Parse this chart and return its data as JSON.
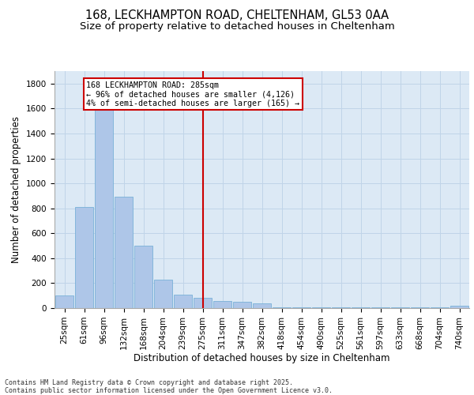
{
  "title1": "168, LECKHAMPTON ROAD, CHELTENHAM, GL53 0AA",
  "title2": "Size of property relative to detached houses in Cheltenham",
  "xlabel": "Distribution of detached houses by size in Cheltenham",
  "ylabel": "Number of detached properties",
  "categories": [
    "25sqm",
    "61sqm",
    "96sqm",
    "132sqm",
    "168sqm",
    "204sqm",
    "239sqm",
    "275sqm",
    "311sqm",
    "347sqm",
    "382sqm",
    "418sqm",
    "454sqm",
    "490sqm",
    "525sqm",
    "561sqm",
    "597sqm",
    "633sqm",
    "668sqm",
    "704sqm",
    "740sqm"
  ],
  "values": [
    100,
    810,
    1640,
    890,
    500,
    230,
    105,
    80,
    55,
    50,
    35,
    5,
    5,
    5,
    5,
    5,
    5,
    5,
    5,
    5,
    20
  ],
  "bar_color": "#aec6e8",
  "bar_edge_color": "#6aaad4",
  "vline_x": 7,
  "vline_color": "#cc0000",
  "annotation_text": "168 LECKHAMPTON ROAD: 285sqm\n← 96% of detached houses are smaller (4,126)\n4% of semi-detached houses are larger (165) →",
  "annotation_box_color": "#ffffff",
  "annotation_box_edge_color": "#cc0000",
  "grid_color": "#c0d4e8",
  "background_color": "#dce9f5",
  "ylim": [
    0,
    1900
  ],
  "yticks": [
    0,
    200,
    400,
    600,
    800,
    1000,
    1200,
    1400,
    1600,
    1800
  ],
  "footer_text": "Contains HM Land Registry data © Crown copyright and database right 2025.\nContains public sector information licensed under the Open Government Licence v3.0.",
  "title_fontsize": 10.5,
  "subtitle_fontsize": 9.5,
  "tick_fontsize": 7.5,
  "label_fontsize": 8.5
}
